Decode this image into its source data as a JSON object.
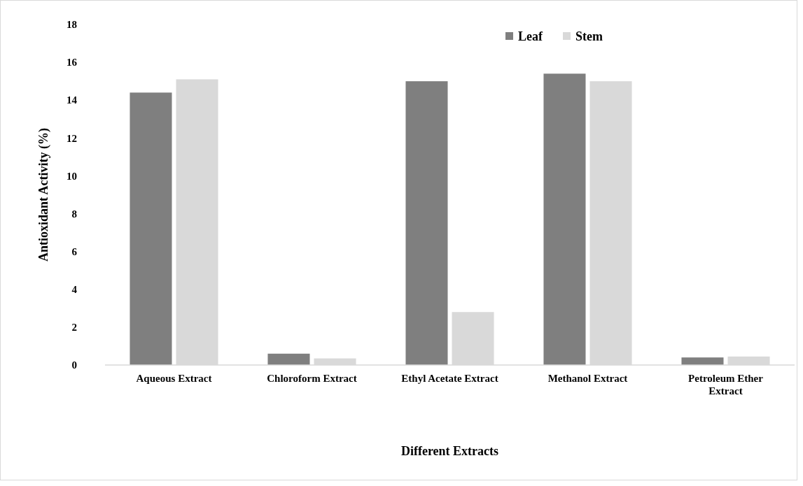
{
  "chart_data": {
    "type": "bar",
    "xlabel": "Different Extracts",
    "ylabel": "Antioxidant Activity (%)",
    "categories": [
      "Aqueous Extract",
      "Chloroform Extract",
      "Ethyl Acetate Extract",
      "Methanol Extract",
      "Petroleum Ether Extract"
    ],
    "series": [
      {
        "name": "Leaf",
        "color": "#7f7f7f",
        "values": [
          14.4,
          0.6,
          15.0,
          15.4,
          0.4
        ]
      },
      {
        "name": "Stem",
        "color": "#d9d9d9",
        "values": [
          15.1,
          0.35,
          2.8,
          15.0,
          0.45
        ]
      }
    ],
    "ylim": [
      0,
      18
    ],
    "yticks": [
      0,
      2,
      4,
      6,
      8,
      10,
      12,
      14,
      16,
      18
    ],
    "grid": false,
    "legend": "top"
  }
}
